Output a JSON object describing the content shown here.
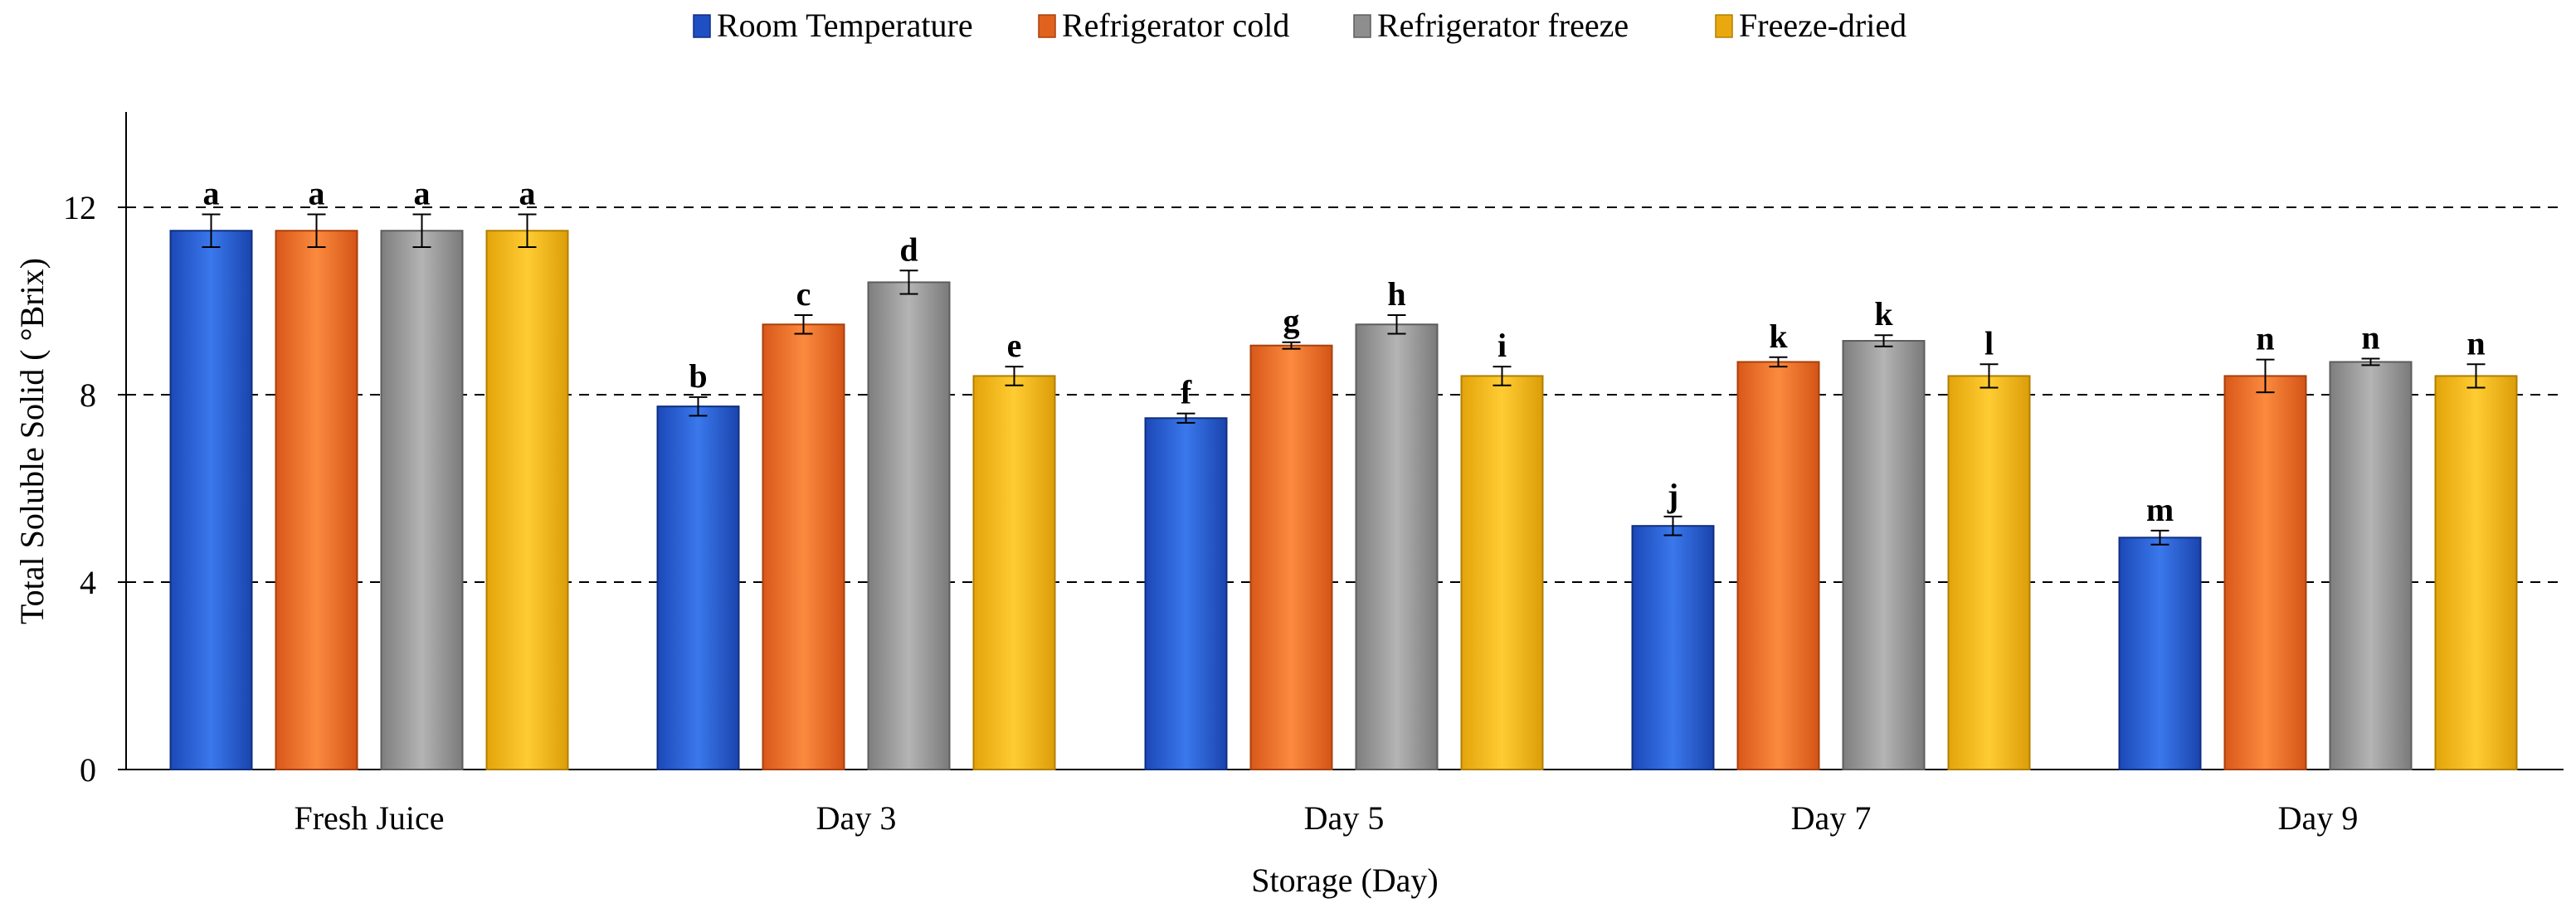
{
  "chart_data": {
    "type": "bar",
    "title": "",
    "xlabel": "Storage (Day)",
    "ylabel": "Total Soluble Solid ( °Brix)",
    "ylim": [
      0,
      14
    ],
    "yticks": [
      0,
      4,
      8,
      12
    ],
    "grid": "horizontal dashed at 4, 8, 12",
    "legend_position": "top-center",
    "categories": [
      "Fresh Juice",
      "Day 3",
      "Day 5",
      "Day 7",
      "Day 9"
    ],
    "series": [
      {
        "name": "Room Temperature",
        "color": "#2a63d6",
        "values": [
          11.5,
          7.75,
          7.5,
          5.2,
          4.95
        ],
        "errors": [
          0.35,
          0.2,
          0.1,
          0.2,
          0.15
        ],
        "letters": [
          "a",
          "b",
          "f",
          "j",
          "m"
        ]
      },
      {
        "name": "Refrigerator cold",
        "color": "#f07a2a",
        "values": [
          11.5,
          9.5,
          9.05,
          8.7,
          8.4
        ],
        "errors": [
          0.35,
          0.2,
          0.07,
          0.1,
          0.35
        ],
        "letters": [
          "a",
          "c",
          "g",
          "k",
          "n"
        ]
      },
      {
        "name": "Refrigerator freeze",
        "color": "#9e9e9e",
        "values": [
          11.5,
          10.4,
          9.5,
          9.15,
          8.7
        ],
        "errors": [
          0.35,
          0.25,
          0.2,
          0.12,
          0.07
        ],
        "letters": [
          "a",
          "d",
          "h",
          "k",
          "n"
        ]
      },
      {
        "name": "Freeze-dried",
        "color": "#f5bd1f",
        "values": [
          11.5,
          8.4,
          8.4,
          8.4,
          8.4
        ],
        "errors": [
          0.35,
          0.2,
          0.2,
          0.25,
          0.25
        ],
        "letters": [
          "a",
          "e",
          "i",
          "l",
          "n"
        ]
      }
    ]
  }
}
